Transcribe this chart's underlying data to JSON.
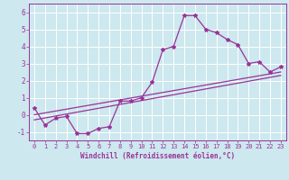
{
  "xlabel": "Windchill (Refroidissement éolien,°C)",
  "background_color": "#cde8ee",
  "grid_color": "#ffffff",
  "line_color": "#993399",
  "xlim": [
    -0.5,
    23.5
  ],
  "ylim": [
    -1.5,
    6.5
  ],
  "yticks": [
    -1,
    0,
    1,
    2,
    3,
    4,
    5,
    6
  ],
  "xticks": [
    0,
    1,
    2,
    3,
    4,
    5,
    6,
    7,
    8,
    9,
    10,
    11,
    12,
    13,
    14,
    15,
    16,
    17,
    18,
    19,
    20,
    21,
    22,
    23
  ],
  "xtick_labels": [
    "0",
    "1",
    "2",
    "3",
    "4",
    "5",
    "6",
    "7",
    "8",
    "9",
    "10",
    "11",
    "12",
    "13",
    "14",
    "15",
    "16",
    "17",
    "18",
    "19",
    "20",
    "21",
    "22",
    "23"
  ],
  "curve1_x": [
    0,
    1,
    2,
    3,
    4,
    5,
    6,
    7,
    8,
    9,
    10,
    11,
    12,
    13,
    14,
    15,
    16,
    17,
    18,
    19,
    20,
    21,
    22,
    23
  ],
  "curve1_y": [
    0.4,
    -0.6,
    -0.2,
    -0.1,
    -1.1,
    -1.1,
    -0.8,
    -0.7,
    0.8,
    0.8,
    1.0,
    1.9,
    3.8,
    4.0,
    5.8,
    5.8,
    5.0,
    4.8,
    4.4,
    4.1,
    3.0,
    3.1,
    2.5,
    2.8
  ],
  "curve2_x": [
    0,
    23
  ],
  "curve2_y": [
    0.0,
    2.5
  ],
  "curve3_x": [
    0,
    23
  ],
  "curve3_y": [
    -0.3,
    2.3
  ]
}
